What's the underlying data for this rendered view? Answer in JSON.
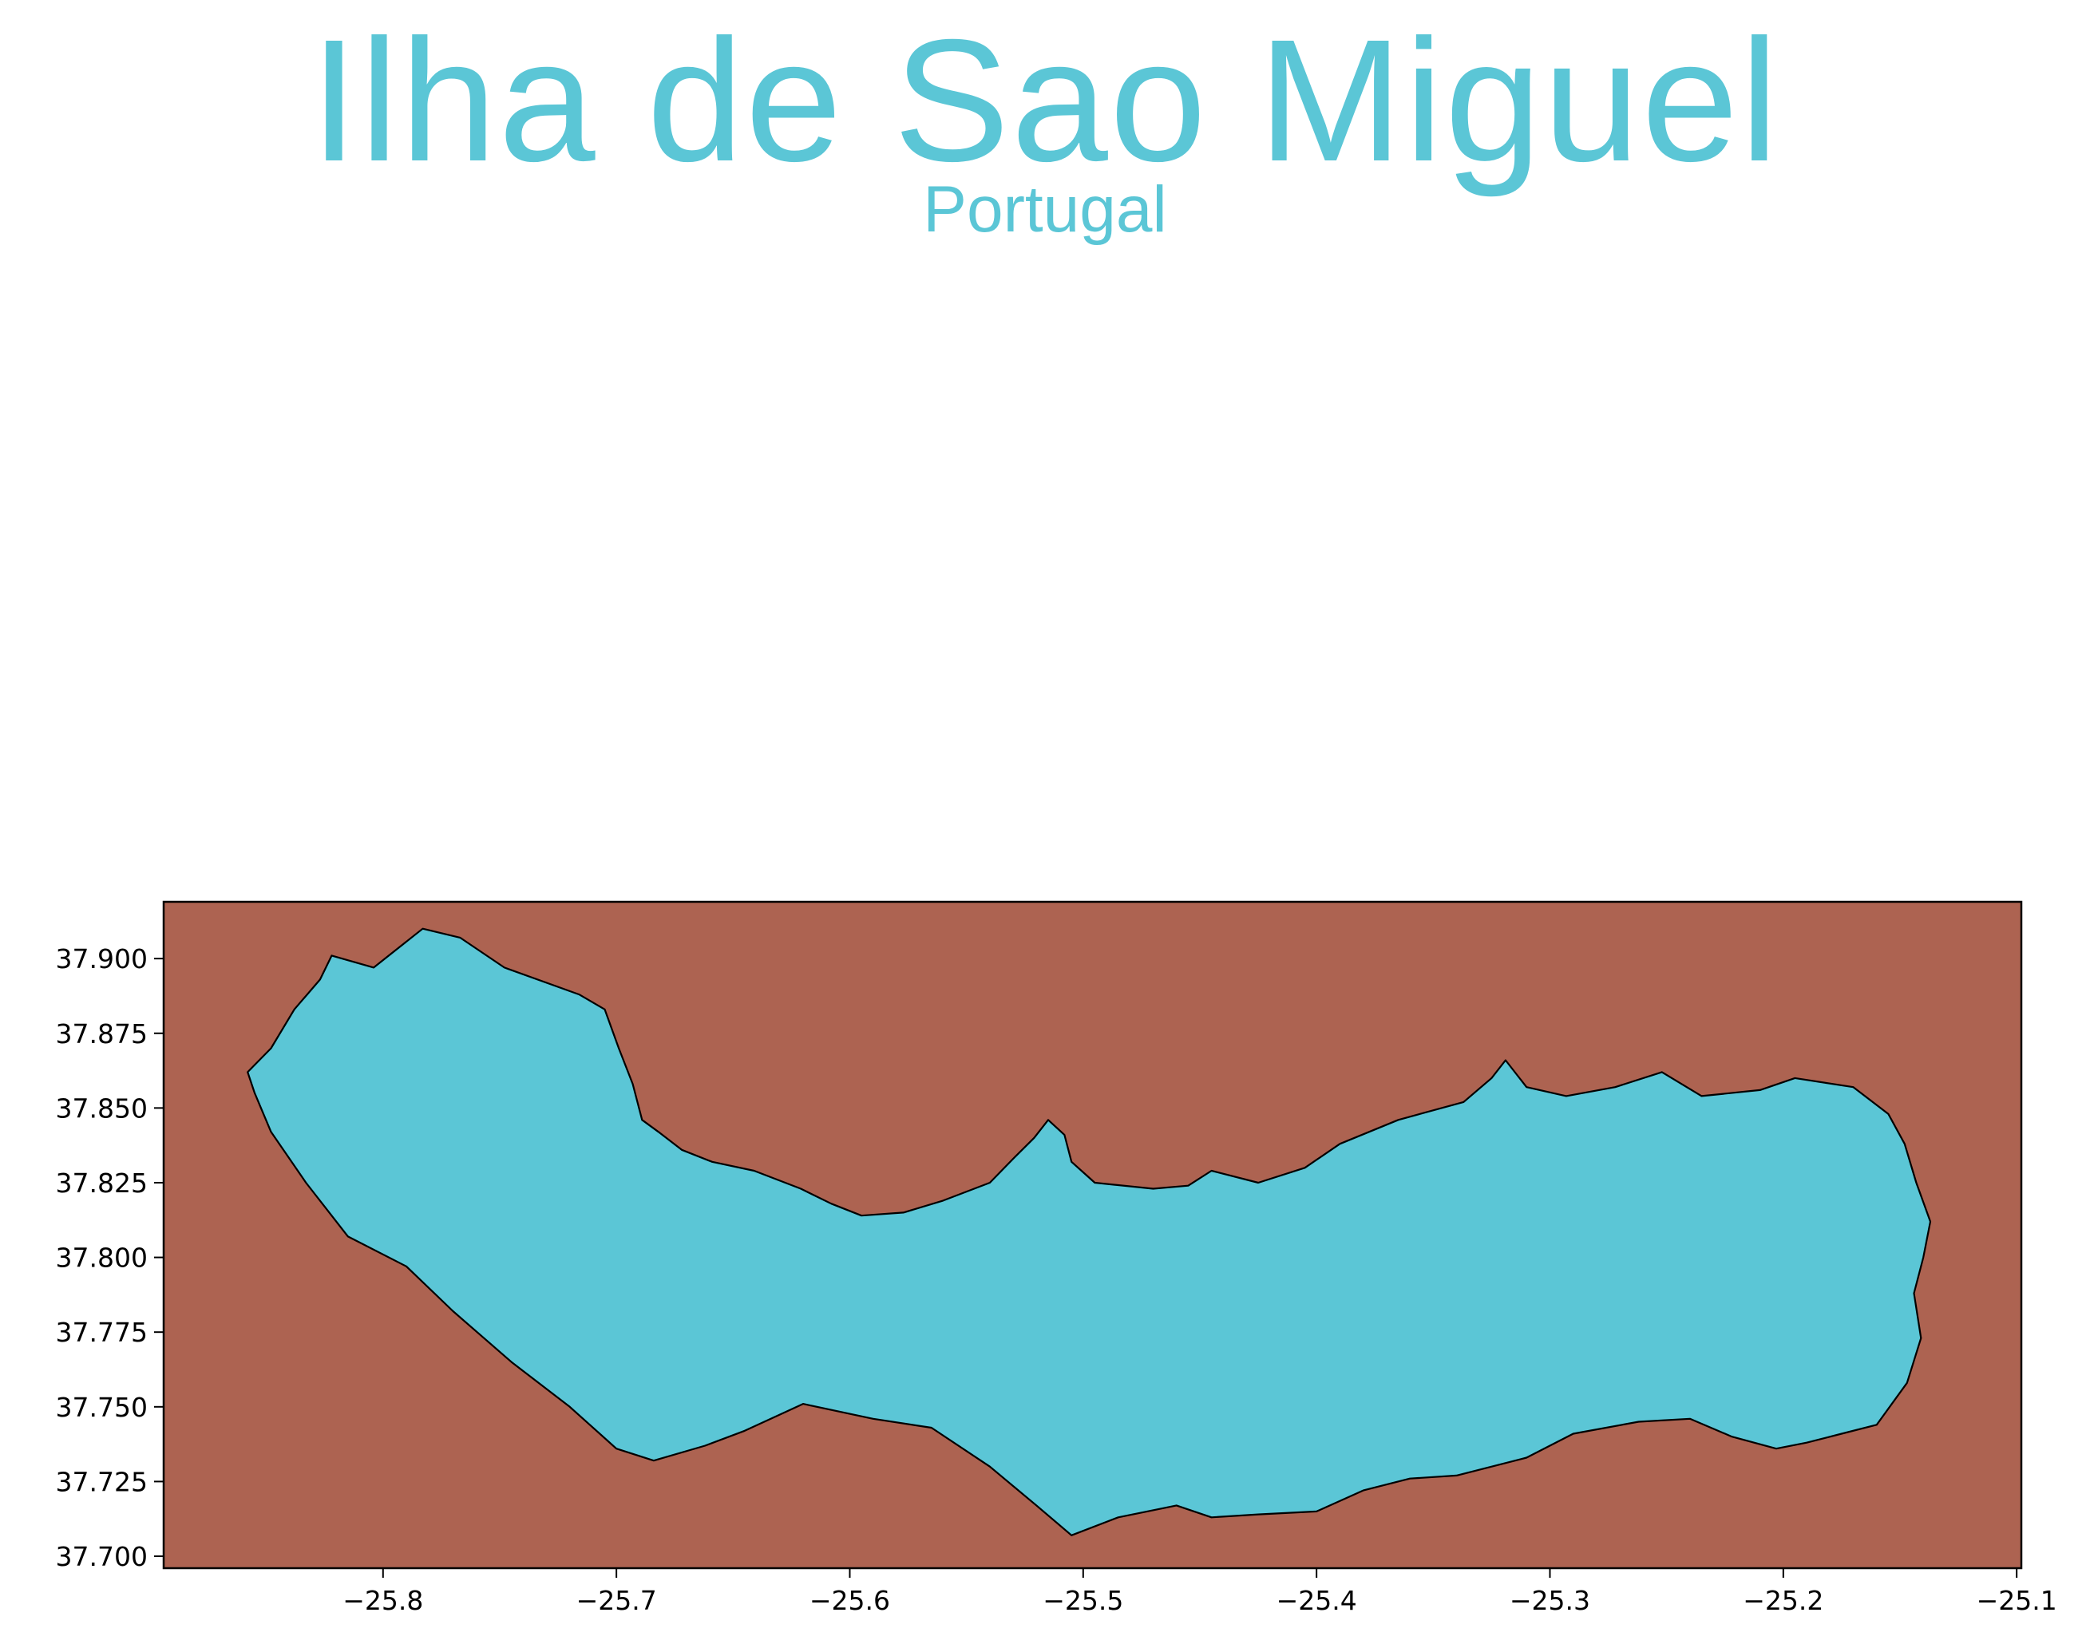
{
  "title": "Ilha de Sao Miguel",
  "subtitle": "Portugal",
  "colors": {
    "title": "#5bc6d6",
    "land": "#5bc6d6",
    "sea": "#ad6351",
    "coastline": "#000000"
  },
  "chart_data": {
    "type": "map",
    "title": "Ilha de Sao Miguel",
    "subtitle": "Portugal",
    "xlabel": "",
    "ylabel": "",
    "xlim": [
      -25.894,
      -25.098
    ],
    "ylim": [
      37.696,
      37.919
    ],
    "xticks": [
      -25.8,
      -25.7,
      -25.6,
      -25.5,
      -25.4,
      -25.3,
      -25.2,
      -25.1
    ],
    "xtick_labels": [
      "−25.8",
      "−25.7",
      "−25.6",
      "−25.5",
      "−25.4",
      "−25.3",
      "−25.2",
      "−25.1"
    ],
    "yticks": [
      37.7,
      37.725,
      37.75,
      37.775,
      37.8,
      37.825,
      37.85,
      37.875,
      37.9
    ],
    "ytick_labels": [
      "37.700",
      "37.725",
      "37.750",
      "37.775",
      "37.800",
      "37.825",
      "37.850",
      "37.875",
      "37.900"
    ],
    "grid": false,
    "island_outline": [
      [
        -25.858,
        37.862
      ],
      [
        -25.848,
        37.87
      ],
      [
        -25.838,
        37.883
      ],
      [
        -25.827,
        37.893
      ],
      [
        -25.822,
        37.901
      ],
      [
        -25.804,
        37.897
      ],
      [
        -25.783,
        37.91
      ],
      [
        -25.767,
        37.907
      ],
      [
        -25.748,
        37.897
      ],
      [
        -25.716,
        37.888
      ],
      [
        -25.705,
        37.883
      ],
      [
        -25.699,
        37.87
      ],
      [
        -25.693,
        37.858
      ],
      [
        -25.689,
        37.846
      ],
      [
        -25.682,
        37.842
      ],
      [
        -25.672,
        37.836
      ],
      [
        -25.659,
        37.832
      ],
      [
        -25.641,
        37.829
      ],
      [
        -25.621,
        37.823
      ],
      [
        -25.608,
        37.818
      ],
      [
        -25.595,
        37.814
      ],
      [
        -25.577,
        37.815
      ],
      [
        -25.56,
        37.819
      ],
      [
        -25.54,
        37.825
      ],
      [
        -25.53,
        37.833
      ],
      [
        -25.521,
        37.84
      ],
      [
        -25.515,
        37.846
      ],
      [
        -25.508,
        37.841
      ],
      [
        -25.505,
        37.832
      ],
      [
        -25.495,
        37.825
      ],
      [
        -25.47,
        37.823
      ],
      [
        -25.455,
        37.824
      ],
      [
        -25.445,
        37.829
      ],
      [
        -25.425,
        37.825
      ],
      [
        -25.405,
        37.83
      ],
      [
        -25.39,
        37.838
      ],
      [
        -25.365,
        37.846
      ],
      [
        -25.337,
        37.852
      ],
      [
        -25.325,
        37.86
      ],
      [
        -25.319,
        37.866
      ],
      [
        -25.31,
        37.857
      ],
      [
        -25.293,
        37.854
      ],
      [
        -25.272,
        37.857
      ],
      [
        -25.252,
        37.862
      ],
      [
        -25.235,
        37.854
      ],
      [
        -25.21,
        37.856
      ],
      [
        -25.195,
        37.86
      ],
      [
        -25.17,
        37.857
      ],
      [
        -25.155,
        37.848
      ],
      [
        -25.148,
        37.838
      ],
      [
        -25.143,
        37.825
      ],
      [
        -25.137,
        37.812
      ],
      [
        -25.14,
        37.8
      ],
      [
        -25.144,
        37.788
      ],
      [
        -25.141,
        37.773
      ],
      [
        -25.147,
        37.758
      ],
      [
        -25.16,
        37.744
      ],
      [
        -25.175,
        37.741
      ],
      [
        -25.19,
        37.738
      ],
      [
        -25.203,
        37.736
      ],
      [
        -25.222,
        37.74
      ],
      [
        -25.24,
        37.746
      ],
      [
        -25.262,
        37.745
      ],
      [
        -25.29,
        37.741
      ],
      [
        -25.31,
        37.733
      ],
      [
        -25.34,
        37.727
      ],
      [
        -25.36,
        37.726
      ],
      [
        -25.38,
        37.722
      ],
      [
        -25.4,
        37.715
      ],
      [
        -25.425,
        37.714
      ],
      [
        -25.445,
        37.713
      ],
      [
        -25.46,
        37.717
      ],
      [
        -25.485,
        37.713
      ],
      [
        -25.505,
        37.707
      ],
      [
        -25.52,
        37.717
      ],
      [
        -25.54,
        37.73
      ],
      [
        -25.565,
        37.743
      ],
      [
        -25.59,
        37.746
      ],
      [
        -25.62,
        37.751
      ],
      [
        -25.645,
        37.742
      ],
      [
        -25.662,
        37.737
      ],
      [
        -25.684,
        37.732
      ],
      [
        -25.7,
        37.736
      ],
      [
        -25.72,
        37.75
      ],
      [
        -25.745,
        37.765
      ],
      [
        -25.77,
        37.782
      ],
      [
        -25.79,
        37.797
      ],
      [
        -25.815,
        37.807
      ],
      [
        -25.833,
        37.825
      ],
      [
        -25.848,
        37.842
      ],
      [
        -25.855,
        37.855
      ],
      [
        -25.858,
        37.862
      ]
    ]
  }
}
